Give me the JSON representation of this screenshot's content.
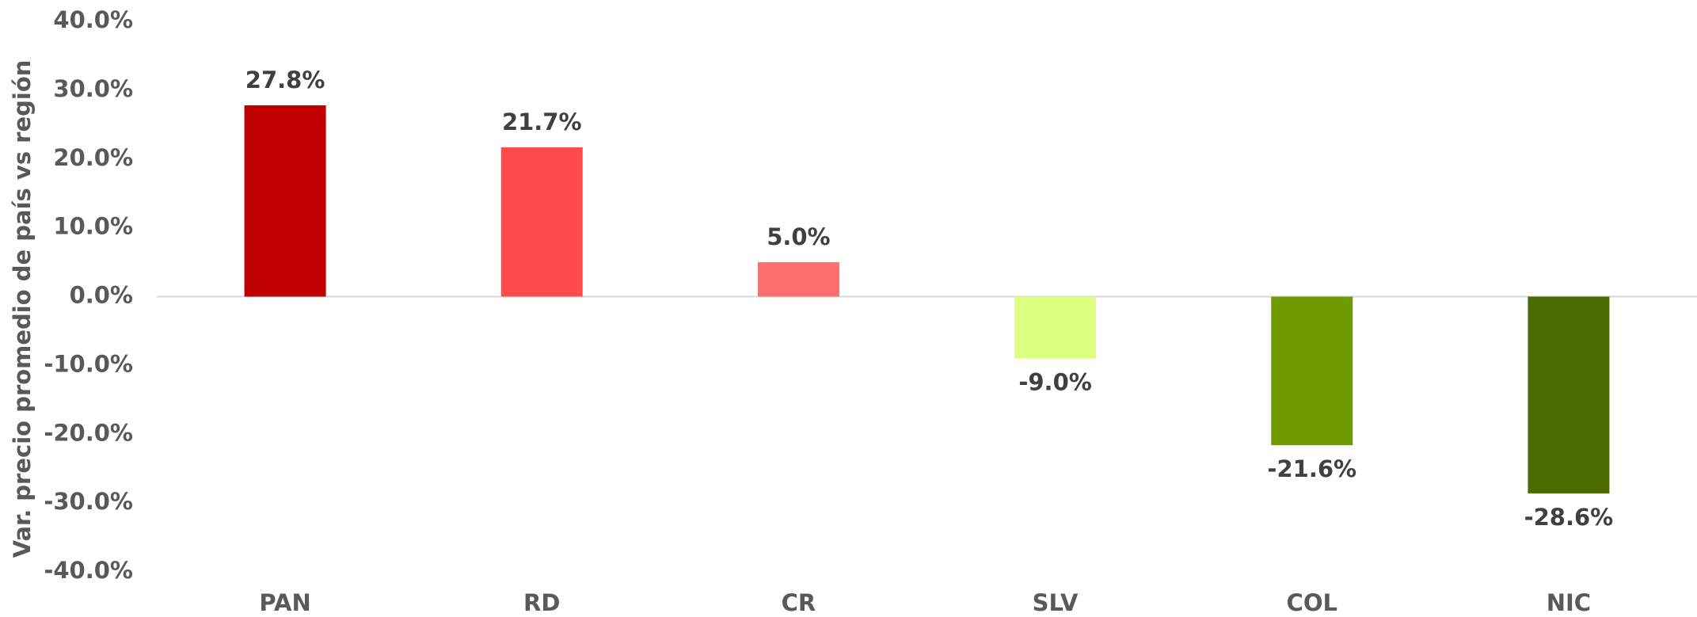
{
  "chart_data": {
    "type": "bar",
    "y_axis_label": "Var. precio promedio de país vs región",
    "categories": [
      "PAN",
      "RD",
      "CR",
      "SLV",
      "COL",
      "NIC"
    ],
    "values": [
      27.8,
      21.7,
      5.0,
      -9.0,
      -21.6,
      -28.6
    ],
    "value_labels": [
      "27.8%",
      "21.7%",
      "5.0%",
      "-9.0%",
      "-21.6%",
      "-28.6%"
    ],
    "colors": [
      "#c00000",
      "#ff4b4b",
      "#ff6f6f",
      "#ddff80",
      "#6f9a00",
      "#4b6a00"
    ],
    "ylim": [
      -40,
      40
    ],
    "yticks": [
      {
        "value": 40,
        "label": "40.0%"
      },
      {
        "value": 30,
        "label": "30.0%"
      },
      {
        "value": 20,
        "label": "20.0%"
      },
      {
        "value": 10,
        "label": "10.0%"
      },
      {
        "value": 0,
        "label": "0.0%"
      },
      {
        "value": -10,
        "label": "-10.0%"
      },
      {
        "value": -20,
        "label": "-20.0%"
      },
      {
        "value": -30,
        "label": "-30.0%"
      },
      {
        "value": -40,
        "label": "-40.0%"
      }
    ],
    "grid": false
  }
}
